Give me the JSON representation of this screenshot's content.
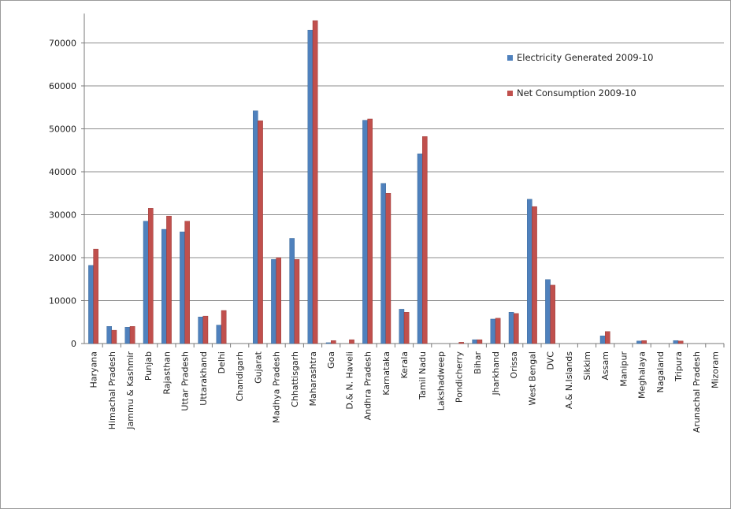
{
  "chart_data": {
    "type": "bar",
    "title": "",
    "xlabel": "",
    "ylabel": "",
    "ylim": [
      0,
      75000
    ],
    "yticks": [
      0,
      10000,
      20000,
      30000,
      40000,
      50000,
      60000,
      70000
    ],
    "ytick_labels": [
      "0",
      "10000",
      "20000",
      "30000",
      "40000",
      "50000",
      "60000",
      "70000"
    ],
    "grid": "horizontal",
    "legend_position": "top-right",
    "categories": [
      "Haryana",
      "Himachal Pradesh",
      "Jammu & Kashmir",
      "Punjab",
      "Rajasthan",
      "Uttar Pradesh",
      "Uttarakhand",
      "Delhi",
      "Chandigarh",
      "Gujarat",
      "Madhya Pradesh",
      "Chhattisgarh",
      "Maharashtra",
      "Goa",
      "D.& N. Haveli",
      "Andhra Pradesh",
      "Karnataka",
      "Kerala",
      "Tamil Nadu",
      "Lakshadweep",
      "Pondicherry",
      "Bihar",
      "Jharkhand",
      "Orissa",
      "West Bengal",
      "DVC",
      "A.& N.Islands",
      "Sikkim",
      "Assam",
      "Manipur",
      "Meghalaya",
      "Nagaland",
      "Tripura",
      "Arunachal Pradesh",
      "Mizoram"
    ],
    "series": [
      {
        "name": "Electricity Generated 2009-10",
        "color": "#4f81bd",
        "values": [
          18200,
          4000,
          3800,
          28500,
          26600,
          26000,
          6200,
          4300,
          0,
          54200,
          19600,
          24500,
          73000,
          200,
          0,
          52000,
          37300,
          8000,
          44200,
          0,
          0,
          900,
          5700,
          7300,
          33600,
          14900,
          0,
          0,
          1800,
          0,
          600,
          0,
          700,
          0,
          0
        ]
      },
      {
        "name": "Net Consumption 2009-10",
        "color": "#c0504d",
        "values": [
          22000,
          3100,
          4000,
          31500,
          29700,
          28500,
          6400,
          7700,
          0,
          51900,
          20000,
          19600,
          75200,
          700,
          900,
          52300,
          35000,
          7300,
          48200,
          0,
          300,
          900,
          5900,
          7000,
          31900,
          13600,
          0,
          0,
          2800,
          0,
          700,
          0,
          600,
          0,
          0
        ]
      }
    ]
  }
}
